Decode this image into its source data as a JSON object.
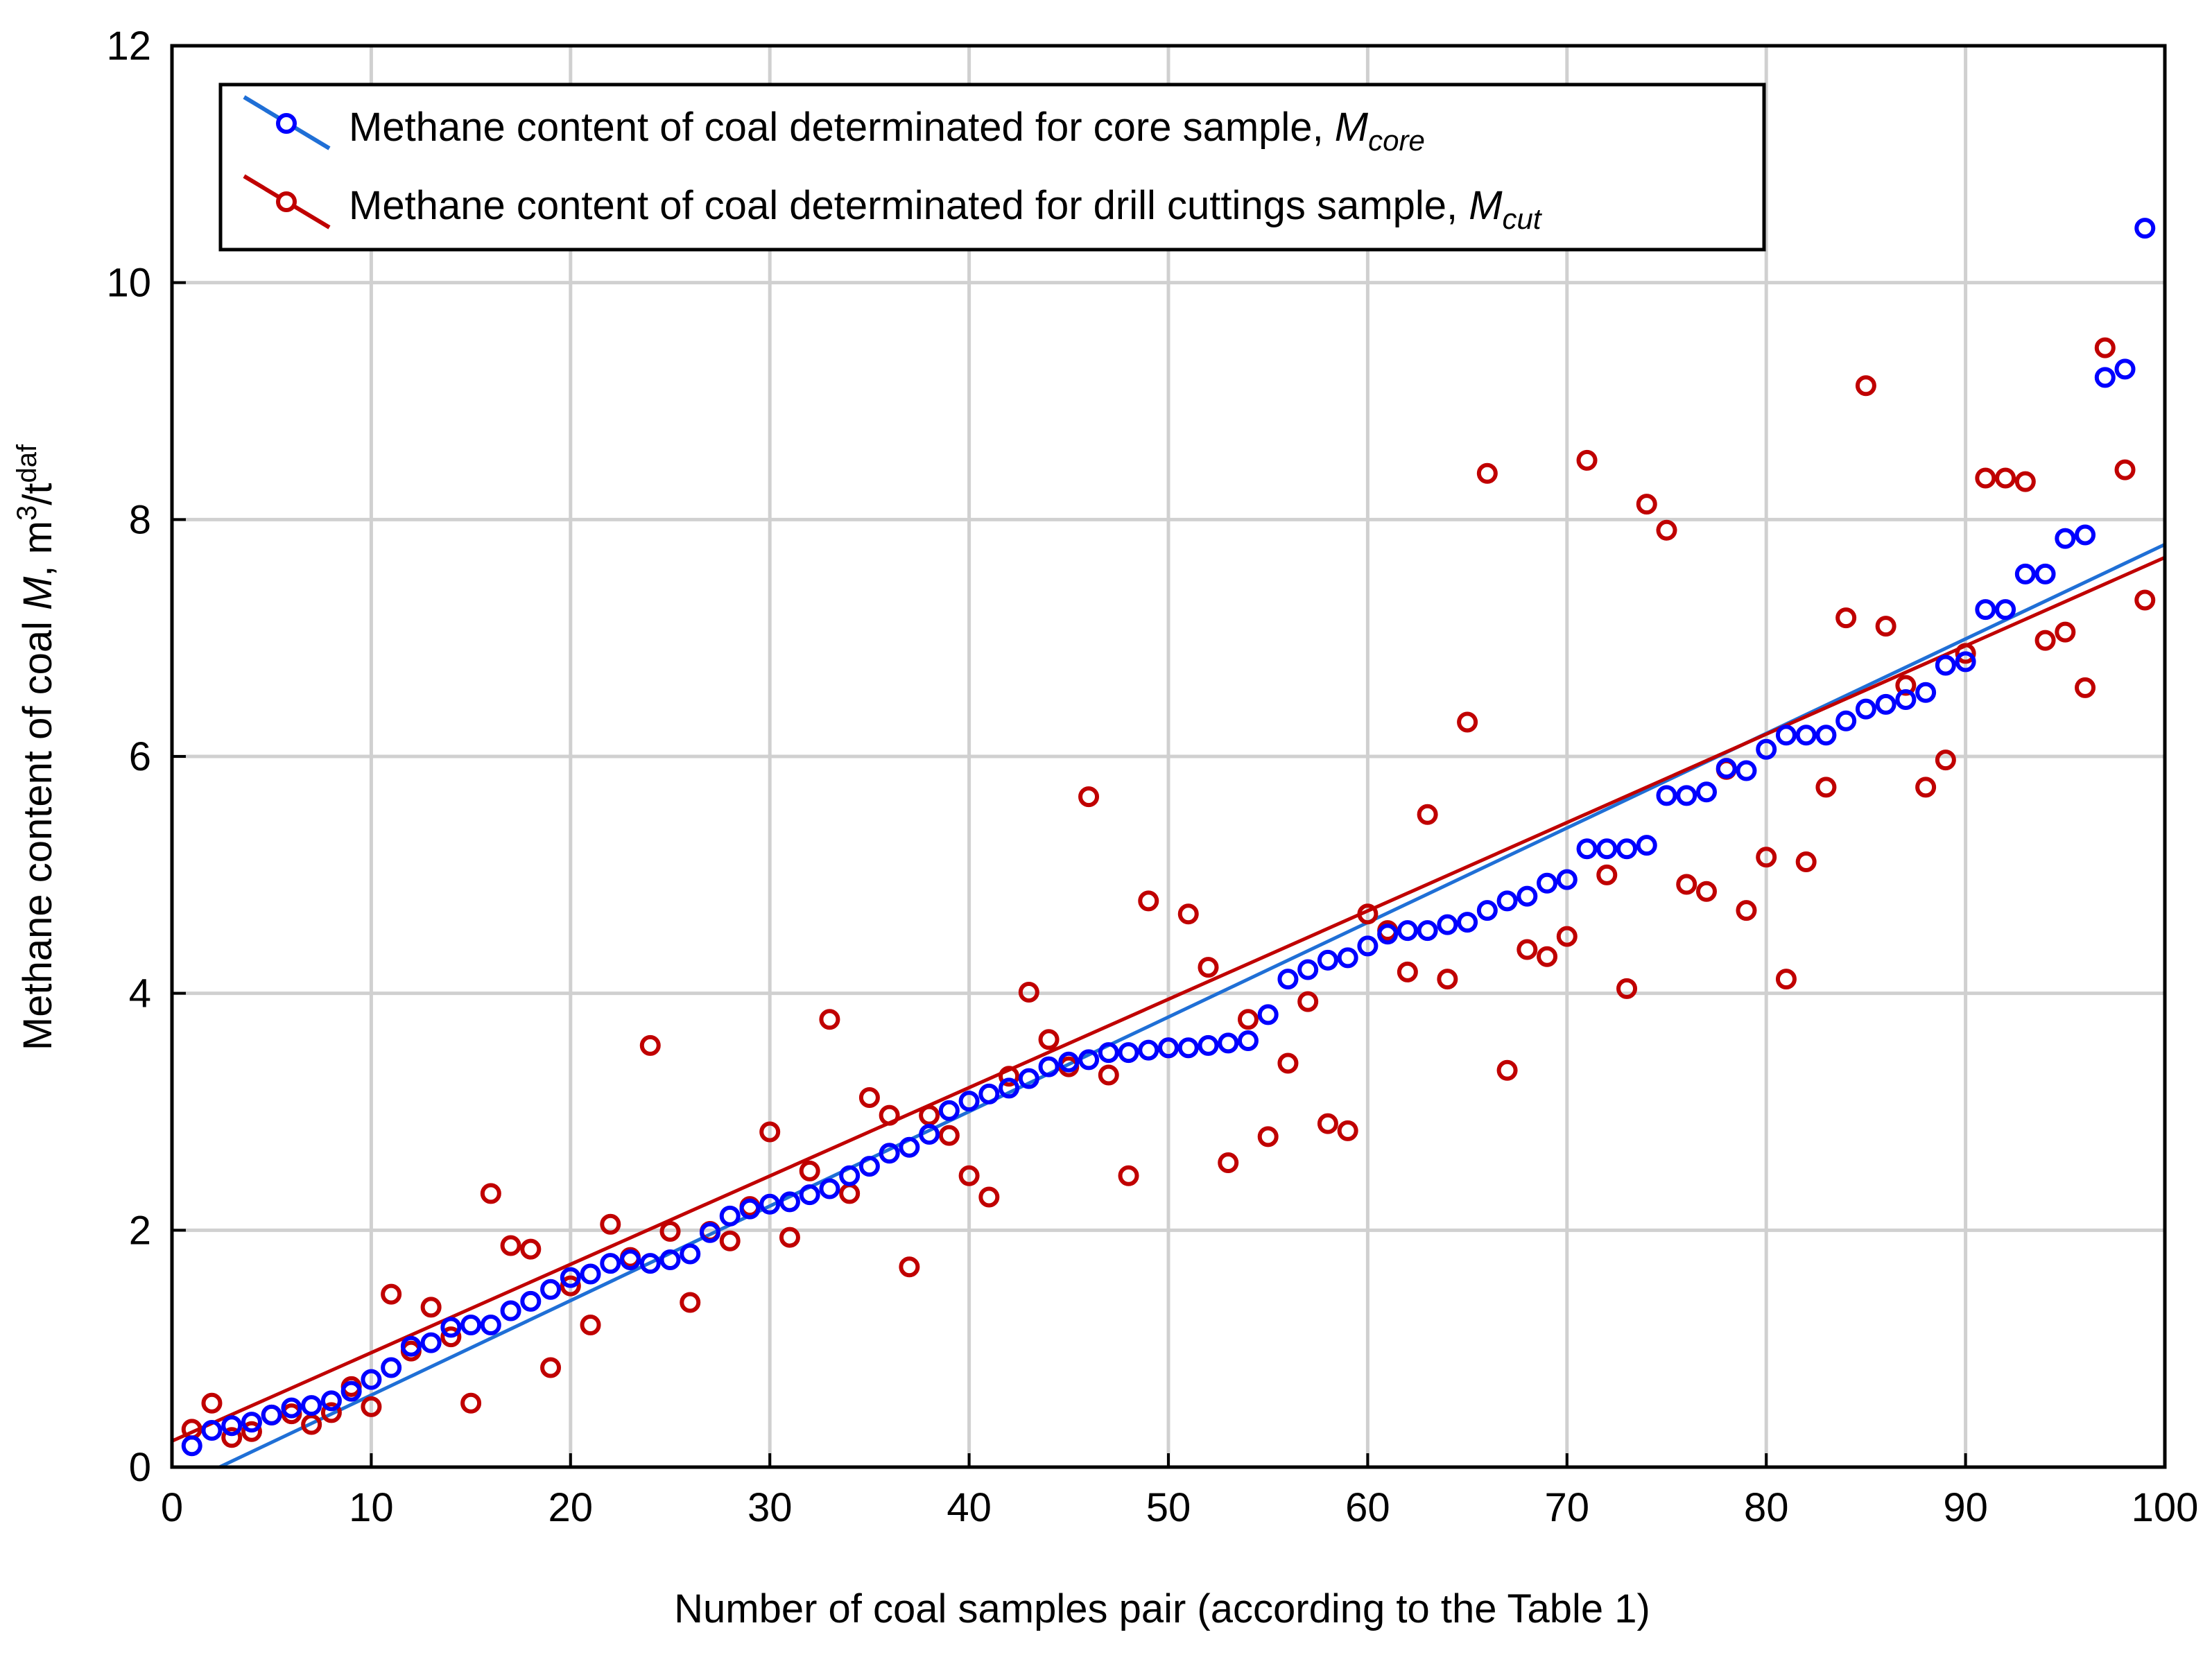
{
  "chart_data": {
    "type": "scatter",
    "title": "",
    "xlabel": "Number of coal samples pair (according to the Table 1)",
    "ylabel_parts": {
      "main": "Methane content of coal ",
      "var": "M",
      "unit_prefix": ", m",
      "sup1": "3",
      "slash": "/t",
      "sup2": "daf"
    },
    "xlim": [
      0,
      100
    ],
    "ylim": [
      0,
      12
    ],
    "xticks": [
      "0",
      "10",
      "20",
      "30",
      "40",
      "50",
      "60",
      "70",
      "80",
      "90",
      "100"
    ],
    "yticks": [
      "0",
      "2",
      "4",
      "6",
      "8",
      "10",
      "12"
    ],
    "grid": true,
    "legend_position": "top-left",
    "series": [
      {
        "name": "core",
        "color": "#0000ff",
        "line_color": "#1f6fd6",
        "legend_main": "Methane content of coal determinated for core sample, ",
        "legend_var": "M",
        "legend_sub": "core",
        "fit": {
          "slope": 0.0798,
          "intercept": -0.19
        },
        "x": [
          1,
          2,
          3,
          4,
          5,
          6,
          7,
          8,
          9,
          10,
          11,
          12,
          13,
          14,
          15,
          16,
          17,
          18,
          19,
          20,
          21,
          22,
          23,
          24,
          25,
          26,
          27,
          28,
          29,
          30,
          31,
          32,
          33,
          34,
          35,
          36,
          37,
          38,
          39,
          40,
          41,
          42,
          43,
          44,
          45,
          46,
          47,
          48,
          49,
          50,
          51,
          52,
          53,
          54,
          55,
          56,
          57,
          58,
          59,
          60,
          61,
          62,
          63,
          64,
          65,
          66,
          67,
          68,
          69,
          70,
          71,
          72,
          73,
          74,
          75,
          76,
          77,
          78,
          79,
          80,
          81,
          82,
          83,
          84,
          85,
          86,
          87,
          88,
          89,
          90,
          91,
          92,
          93,
          94,
          95,
          96,
          97,
          98,
          99
        ],
        "y": [
          0.18,
          0.31,
          0.35,
          0.38,
          0.44,
          0.5,
          0.52,
          0.56,
          0.64,
          0.74,
          0.84,
          1.02,
          1.05,
          1.18,
          1.2,
          1.2,
          1.32,
          1.4,
          1.5,
          1.6,
          1.63,
          1.72,
          1.75,
          1.72,
          1.75,
          1.8,
          1.98,
          2.12,
          2.18,
          2.22,
          2.24,
          2.3,
          2.35,
          2.46,
          2.54,
          2.65,
          2.7,
          2.81,
          3.01,
          3.09,
          3.15,
          3.2,
          3.28,
          3.38,
          3.42,
          3.44,
          3.5,
          3.5,
          3.52,
          3.54,
          3.54,
          3.56,
          3.58,
          3.6,
          3.82,
          4.12,
          4.2,
          4.28,
          4.3,
          4.4,
          4.5,
          4.53,
          4.53,
          4.58,
          4.6,
          4.7,
          4.78,
          4.82,
          4.93,
          4.96,
          5.22,
          5.22,
          5.22,
          5.25,
          5.67,
          5.67,
          5.7,
          5.9,
          5.88,
          6.06,
          6.18,
          6.18,
          6.18,
          6.3,
          6.4,
          6.44,
          6.48,
          6.54,
          6.77,
          6.8,
          7.24,
          7.24,
          7.54,
          7.54,
          7.84,
          7.87,
          9.2,
          9.27,
          10.46
        ]
      },
      {
        "name": "cuttings",
        "color": "#c00000",
        "line_color": "#c00000",
        "legend_main": "Methane content of coal determinated for drill cuttings sample, ",
        "legend_var": "M",
        "legend_sub": "cut",
        "fit": {
          "slope": 0.0746,
          "intercept": 0.22
        },
        "x": [
          1,
          2,
          3,
          4,
          5,
          6,
          7,
          8,
          9,
          10,
          11,
          12,
          13,
          14,
          15,
          16,
          17,
          18,
          19,
          20,
          21,
          22,
          23,
          24,
          25,
          26,
          27,
          28,
          29,
          30,
          31,
          32,
          33,
          34,
          35,
          36,
          37,
          38,
          39,
          40,
          41,
          42,
          43,
          44,
          45,
          46,
          47,
          48,
          49,
          50,
          51,
          52,
          53,
          54,
          55,
          56,
          57,
          58,
          59,
          60,
          61,
          62,
          63,
          64,
          65,
          66,
          67,
          68,
          69,
          70,
          71,
          72,
          73,
          74,
          75,
          76,
          77,
          78,
          79,
          80,
          81,
          82,
          83,
          84,
          85,
          86,
          87,
          88,
          89,
          90,
          91,
          92,
          93,
          94,
          95,
          96,
          97,
          98,
          99
        ],
        "y": [
          0.32,
          0.54,
          0.25,
          0.3,
          0.44,
          0.45,
          0.36,
          0.46,
          0.68,
          0.51,
          1.46,
          0.98,
          1.35,
          1.1,
          0.54,
          2.31,
          1.87,
          1.84,
          0.84,
          1.53,
          1.2,
          2.05,
          1.77,
          3.56,
          1.99,
          1.39,
          1.99,
          1.91,
          2.2,
          2.83,
          1.94,
          2.5,
          3.78,
          2.31,
          3.12,
          2.97,
          1.69,
          2.97,
          2.8,
          2.46,
          2.28,
          3.3,
          4.01,
          3.61,
          3.38,
          5.66,
          3.31,
          2.46,
          4.78,
          3.54,
          4.67,
          4.22,
          2.57,
          3.78,
          2.79,
          3.41,
          3.93,
          2.9,
          2.84,
          4.67,
          4.53,
          4.18,
          5.51,
          4.12,
          6.29,
          8.39,
          3.35,
          4.37,
          4.31,
          4.48,
          8.5,
          5.0,
          4.04,
          8.13,
          7.91,
          4.92,
          4.86,
          5.89,
          4.7,
          5.15,
          4.12,
          5.11,
          5.74,
          7.17,
          9.13,
          7.1,
          6.6,
          5.74,
          5.97,
          6.87,
          8.35,
          8.35,
          8.32,
          6.98,
          7.05,
          6.58,
          9.45,
          8.42,
          7.32
        ]
      }
    ]
  }
}
